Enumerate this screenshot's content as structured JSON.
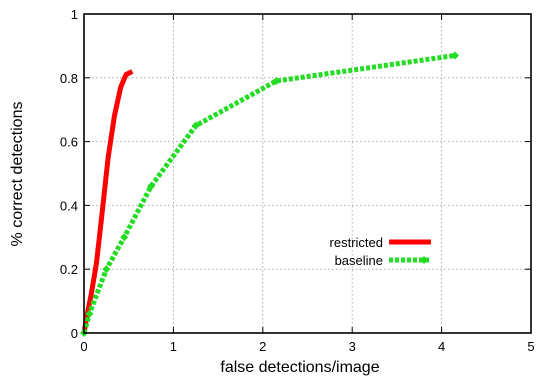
{
  "chart_data": {
    "type": "line",
    "xlabel": "false detections/image",
    "ylabel": "% correct detections",
    "xlim": [
      0,
      5
    ],
    "ylim": [
      0,
      1
    ],
    "xticks": [
      "0",
      "1",
      "2",
      "3",
      "4",
      "5"
    ],
    "yticks": [
      "0",
      "0.2",
      "0.4",
      "0.6",
      "0.8",
      "1"
    ],
    "grid": true,
    "legend_position": "lower-right",
    "series": [
      {
        "name": "restricted",
        "color": "#ff0000",
        "style": "solid-thick",
        "points": [
          [
            0,
            0
          ],
          [
            0.03,
            0.05
          ],
          [
            0.08,
            0.12
          ],
          [
            0.14,
            0.22
          ],
          [
            0.2,
            0.37
          ],
          [
            0.27,
            0.55
          ],
          [
            0.34,
            0.68
          ],
          [
            0.41,
            0.77
          ],
          [
            0.47,
            0.81
          ],
          [
            0.54,
            0.82
          ]
        ]
      },
      {
        "name": "baseline",
        "color": "#22dd22",
        "style": "dashed-thick-with-diamond-markers",
        "points": [
          [
            0,
            0
          ],
          [
            0.06,
            0.06
          ],
          [
            0.25,
            0.2
          ],
          [
            0.45,
            0.3
          ],
          [
            0.75,
            0.46
          ],
          [
            1.25,
            0.65
          ],
          [
            2.15,
            0.79
          ],
          [
            4.15,
            0.87
          ]
        ]
      }
    ]
  }
}
